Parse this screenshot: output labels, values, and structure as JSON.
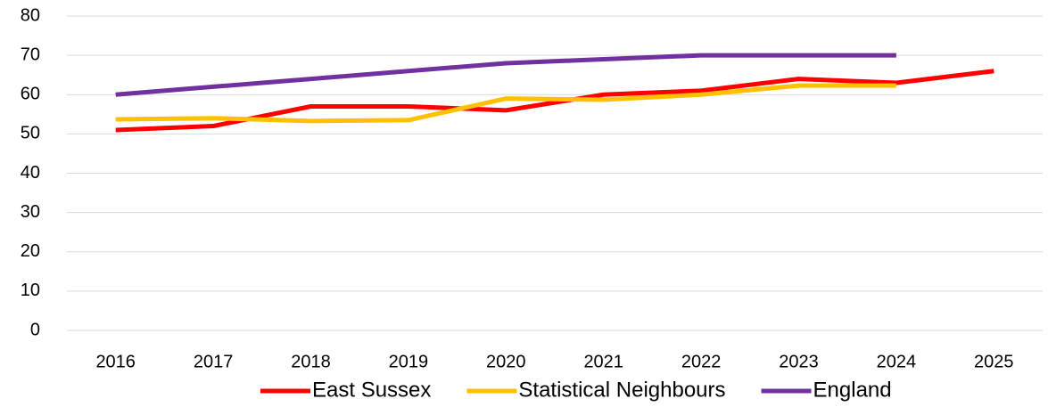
{
  "chart_data": {
    "type": "line",
    "categories": [
      "2016",
      "2017",
      "2018",
      "2019",
      "2020",
      "2021",
      "2022",
      "2023",
      "2024",
      "2025"
    ],
    "series": [
      {
        "name": "East Sussex",
        "color": "#ff0000",
        "values": [
          51,
          52,
          57,
          57,
          56,
          60,
          61,
          64,
          63,
          66
        ]
      },
      {
        "name": "Statistical Neighbours",
        "color": "#ffc000",
        "values": [
          53.7,
          54,
          53.3,
          53.5,
          59,
          58.7,
          60,
          62.3,
          62.3,
          null
        ]
      },
      {
        "name": "England",
        "color": "#7030a0",
        "values": [
          60,
          62,
          64,
          66,
          68,
          69,
          70,
          70,
          70,
          null
        ]
      }
    ],
    "ylim": [
      0,
      80
    ],
    "yticks": [
      0,
      10,
      20,
      30,
      40,
      50,
      60,
      70,
      80
    ],
    "grid": true,
    "legend": "bottom"
  }
}
